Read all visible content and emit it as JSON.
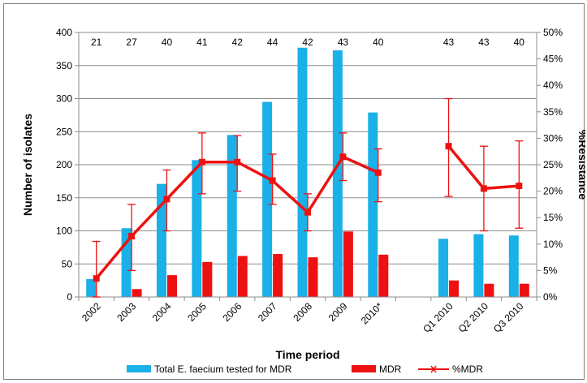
{
  "chart_data": {
    "type": "bar",
    "title": "",
    "xlabel": "Time period",
    "ylabel": "Number of isolates",
    "y2label": "%Resistance",
    "ylim": [
      0,
      400
    ],
    "yticks": [
      0,
      50,
      100,
      150,
      200,
      250,
      300,
      350,
      400
    ],
    "y2lim": [
      0,
      50
    ],
    "y2ticks": [
      "0%",
      "5%",
      "10%",
      "15%",
      "20%",
      "25%",
      "30%",
      "35%",
      "40%",
      "45%",
      "50%"
    ],
    "grid": true,
    "legend_position": "bottom",
    "categories": [
      "2002",
      "2003",
      "2004",
      "2005",
      "2006",
      "2007",
      "2008",
      "2009",
      "2010*",
      "",
      "Q1 2010",
      "Q2 2010",
      "Q3 2010"
    ],
    "top_labels": [
      "21",
      "27",
      "40",
      "41",
      "42",
      "44",
      "42",
      "43",
      "40",
      "",
      "43",
      "43",
      "40"
    ],
    "series": [
      {
        "name": "Total E. faecium tested for MDR",
        "kind": "bar",
        "axis": "left",
        "color": "#1ab0e8",
        "values": [
          27,
          104,
          171,
          207,
          245,
          295,
          377,
          373,
          279,
          null,
          88,
          95,
          93
        ]
      },
      {
        "name": "MDR",
        "kind": "bar",
        "axis": "left",
        "color": "#ee1111",
        "values": [
          0,
          12,
          33,
          53,
          62,
          65,
          60,
          99,
          64,
          null,
          25,
          20,
          20
        ]
      },
      {
        "name": "%MDR",
        "kind": "line",
        "axis": "right",
        "color": "#ee1111",
        "values": [
          3.5,
          11.5,
          18.5,
          25.5,
          25.5,
          22,
          16,
          26.5,
          23.5,
          null,
          28.5,
          20.5,
          21
        ],
        "error_low": [
          0,
          5,
          12.5,
          19.5,
          20,
          17.5,
          12.5,
          22,
          18,
          null,
          19,
          12.5,
          13
        ],
        "error_high": [
          10.5,
          17.5,
          24,
          31,
          30.5,
          27,
          19.5,
          31,
          28,
          null,
          37.5,
          28.5,
          29.5
        ]
      }
    ]
  }
}
